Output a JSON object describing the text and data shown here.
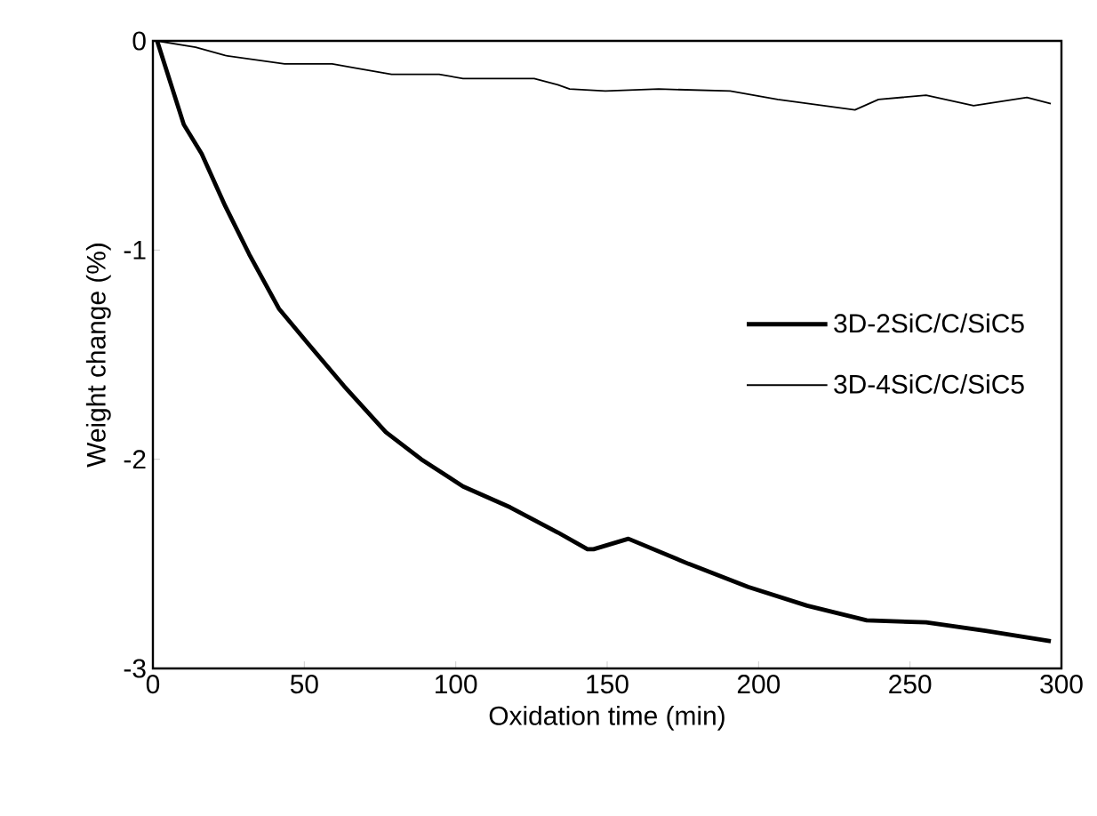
{
  "chart_data": {
    "type": "line",
    "xlabel": "Oxidation time (min)",
    "ylabel": "Weight change (%)",
    "xlim": [
      0,
      300
    ],
    "ylim": [
      -3,
      0
    ],
    "xticks": [
      0,
      50,
      100,
      150,
      200,
      250,
      300
    ],
    "yticks": [
      -3,
      -2,
      -1,
      0
    ],
    "legend": "right",
    "grid": false,
    "series": [
      {
        "name": "3D-2SiC/C/SiC5",
        "color": "#000000",
        "x": [
          1.4,
          10.2,
          16.1,
          23.9,
          31.8,
          41.6,
          51.4,
          63.1,
          76.9,
          88.6,
          102.4,
          118,
          133.7,
          143.5,
          145.5,
          157,
          176.9,
          196.5,
          216,
          235.7,
          255.3,
          274.9,
          296.5
        ],
        "values": [
          0,
          -0.4,
          -0.54,
          -0.79,
          -1.02,
          -1.28,
          -1.45,
          -1.65,
          -1.87,
          -2.0,
          -2.13,
          -2.23,
          -2.35,
          -2.43,
          -2.43,
          -2.38,
          -2.5,
          -2.61,
          -2.7,
          -2.77,
          -2.78,
          -2.82,
          -2.87
        ]
      },
      {
        "name": "3D-4SiC/C/SiC5",
        "color": "#000000",
        "x": [
          1.4,
          14.1,
          23.9,
          43.5,
          59.2,
          67,
          78.8,
          94.5,
          102.4,
          125.9,
          133.7,
          137.6,
          149.4,
          167,
          190.6,
          206.3,
          231.8,
          239.6,
          255.3,
          271,
          288.6,
          296.5
        ],
        "values": [
          0,
          -0.03,
          -0.07,
          -0.11,
          -0.11,
          -0.13,
          -0.16,
          -0.16,
          -0.18,
          -0.18,
          -0.21,
          -0.23,
          -0.24,
          -0.23,
          -0.24,
          -0.28,
          -0.33,
          -0.28,
          -0.26,
          -0.31,
          -0.27,
          -0.3
        ]
      }
    ]
  }
}
